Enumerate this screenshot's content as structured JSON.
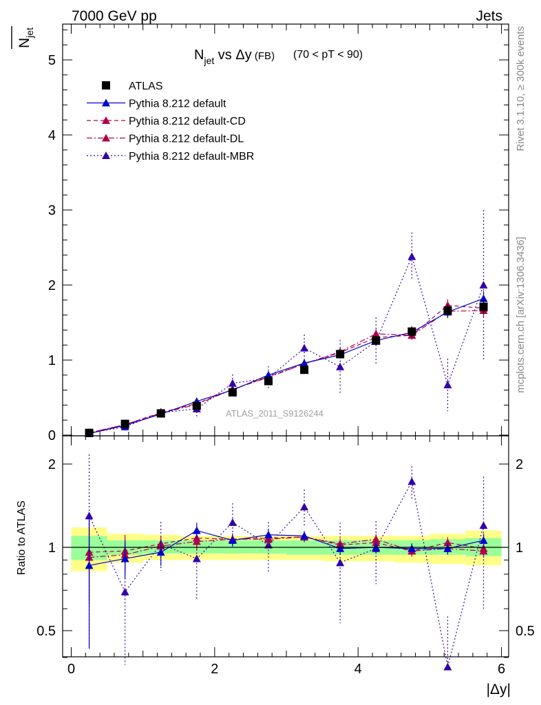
{
  "header": {
    "left": "7000 GeV pp",
    "right": "Jets"
  },
  "side_text": {
    "rivet": "Rivet 3.1.10, ≥ 300k events",
    "mcplots": "mcplots.cern.ch [arXiv:1306.3436]"
  },
  "title": {
    "main": "N",
    "sub": "jet",
    "rest": " vs Δy",
    "small": " (FB)",
    "range": "(70 < pT <  90)"
  },
  "watermark": "ATLAS_2011_S9126244",
  "ylabel_top": {
    "main": "N",
    "sub": "jet"
  },
  "ylabel_bottom": "Ratio to ATLAS",
  "xlabel": "|Δy|",
  "x_ticks": [
    "0",
    "2",
    "4",
    "6"
  ],
  "y_ticks_top": [
    "0",
    "1",
    "2",
    "3",
    "4",
    "5"
  ],
  "y_ticks_bottom": [
    "0.5",
    "1",
    "2"
  ],
  "colors": {
    "data": "#000000",
    "default": "#0000cc",
    "cd": "#b0004a",
    "dl": "#b0004a",
    "mbr": "#3300aa",
    "band_inner": "#99ff99",
    "band_outer": "#ffff88"
  },
  "chart_data": {
    "type": "scatter",
    "x": [
      0.25,
      0.75,
      1.25,
      1.75,
      2.25,
      2.75,
      3.25,
      3.75,
      4.25,
      4.75,
      5.25,
      5.75
    ],
    "xlim": [
      -0.12,
      6.1
    ],
    "ylim": [
      0,
      5.5
    ],
    "ratio_ylim": [
      0.35,
      2.4
    ],
    "series": [
      {
        "name": "ATLAS",
        "values": [
          0.03,
          0.15,
          0.29,
          0.39,
          0.57,
          0.72,
          0.87,
          1.08,
          1.26,
          1.38,
          1.66,
          1.71
        ],
        "errors": [
          0.01,
          0.02,
          0.02,
          0.03,
          0.03,
          0.04,
          0.05,
          0.05,
          0.06,
          0.07,
          0.08,
          0.09
        ],
        "ratio": [
          1,
          1,
          1,
          1,
          1,
          1,
          1,
          1,
          1,
          1,
          1,
          1
        ],
        "style": "data"
      },
      {
        "name": "Pythia 8.212 default",
        "values": [
          0.02,
          0.13,
          0.28,
          0.45,
          0.6,
          0.8,
          0.96,
          1.07,
          1.26,
          1.37,
          1.64,
          1.82
        ],
        "errors": [
          0.01,
          0.02,
          0.03,
          0.03,
          0.03,
          0.04,
          0.04,
          0.05,
          0.06,
          0.06,
          0.08,
          0.1
        ],
        "ratio": [
          0.86,
          0.91,
          0.96,
          1.15,
          1.06,
          1.11,
          1.1,
          0.99,
          1.0,
          0.99,
          0.99,
          1.06
        ],
        "style": "solid"
      },
      {
        "name": "Pythia 8.212 default-CD",
        "values": [
          0.03,
          0.14,
          0.3,
          0.42,
          0.61,
          0.78,
          0.95,
          1.1,
          1.3,
          1.33,
          1.73,
          1.69
        ],
        "errors": [
          0.01,
          0.02,
          0.02,
          0.03,
          0.03,
          0.04,
          0.04,
          0.05,
          0.06,
          0.06,
          0.08,
          0.09
        ],
        "ratio": [
          0.96,
          0.97,
          1.03,
          1.08,
          1.07,
          1.08,
          1.09,
          1.02,
          1.04,
          0.97,
          1.04,
          0.99
        ],
        "style": "dashed"
      },
      {
        "name": "Pythia 8.212 default-DL",
        "values": [
          0.03,
          0.14,
          0.29,
          0.41,
          0.61,
          0.77,
          0.95,
          1.11,
          1.35,
          1.33,
          1.65,
          1.66
        ],
        "errors": [
          0.01,
          0.02,
          0.02,
          0.03,
          0.03,
          0.04,
          0.04,
          0.05,
          0.06,
          0.06,
          0.08,
          0.09
        ],
        "ratio": [
          0.92,
          0.94,
          1.01,
          1.05,
          1.07,
          1.07,
          1.09,
          1.03,
          1.07,
          0.97,
          0.99,
          0.97
        ],
        "style": "dashdot"
      },
      {
        "name": "Pythia 8.212 default-MBR",
        "values": [
          0.03,
          0.11,
          0.3,
          0.35,
          0.69,
          0.76,
          1.16,
          0.91,
          1.25,
          2.38,
          0.67,
          2.0
        ],
        "errors": [
          0.02,
          0.05,
          0.06,
          0.1,
          0.12,
          0.16,
          0.18,
          0.36,
          0.32,
          0.32,
          0.35,
          1.0
        ],
        "ratio": [
          1.3,
          0.69,
          1.03,
          0.91,
          1.23,
          1.02,
          1.4,
          0.88,
          0.99,
          1.73,
          0.37,
          1.2
        ],
        "style": "dotted"
      }
    ],
    "bands": {
      "edges": [
        0,
        0.5,
        1,
        1.5,
        2,
        2.5,
        3,
        3.5,
        4,
        4.5,
        5,
        5.5,
        6
      ],
      "inner_lo": [
        0.9,
        0.94,
        0.95,
        0.95,
        0.95,
        0.95,
        0.94,
        0.94,
        0.94,
        0.94,
        0.94,
        0.93
      ],
      "inner_hi": [
        1.1,
        1.06,
        1.06,
        1.06,
        1.06,
        1.06,
        1.06,
        1.06,
        1.06,
        1.06,
        1.07,
        1.08
      ],
      "outer_lo": [
        0.82,
        0.88,
        0.9,
        0.9,
        0.9,
        0.9,
        0.9,
        0.89,
        0.89,
        0.88,
        0.87,
        0.86
      ],
      "outer_hi": [
        1.18,
        1.12,
        1.11,
        1.1,
        1.1,
        1.1,
        1.1,
        1.1,
        1.1,
        1.1,
        1.12,
        1.15
      ]
    }
  }
}
